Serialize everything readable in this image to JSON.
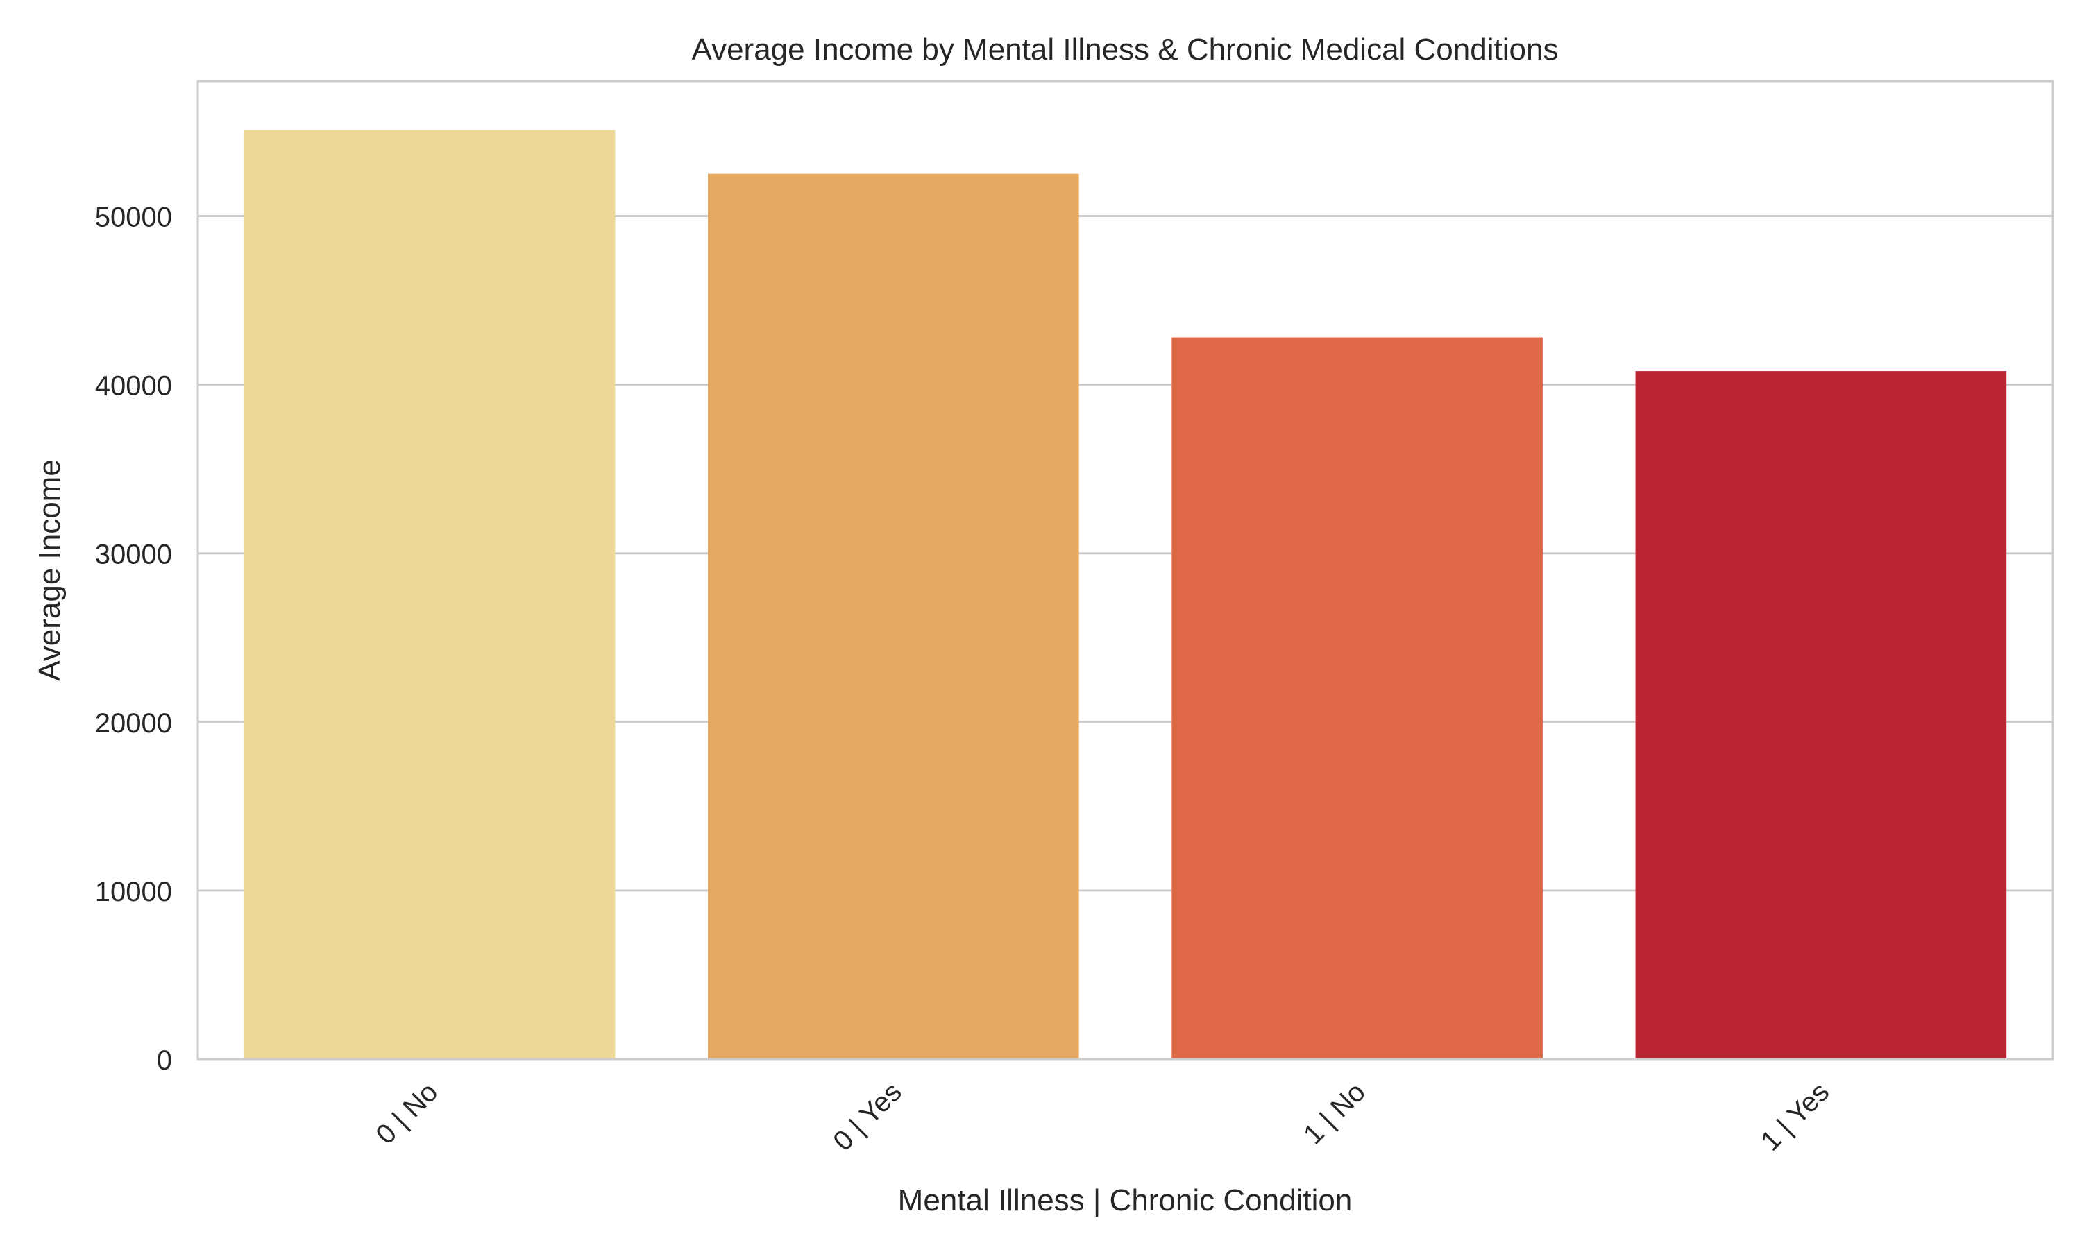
{
  "chart_data": {
    "type": "bar",
    "title": "Average Income by Mental Illness & Chronic Medical Conditions",
    "xlabel": "Mental Illness | Chronic Condition",
    "ylabel": "Average Income",
    "categories": [
      "0 | No",
      "0 | Yes",
      "1 | No",
      "1 | Yes"
    ],
    "values": [
      55100,
      52500,
      42800,
      40800
    ],
    "colors": [
      "#eed895",
      "#e6a760",
      "#e06a47",
      "#bb2633"
    ],
    "ylim": [
      0,
      58000
    ],
    "yticks": [
      0,
      10000,
      20000,
      30000,
      40000,
      50000
    ],
    "ytick_labels": [
      "0",
      "10000",
      "20000",
      "30000",
      "40000",
      "50000"
    ],
    "grid": true,
    "grid_axis": "y",
    "legend": "none"
  }
}
